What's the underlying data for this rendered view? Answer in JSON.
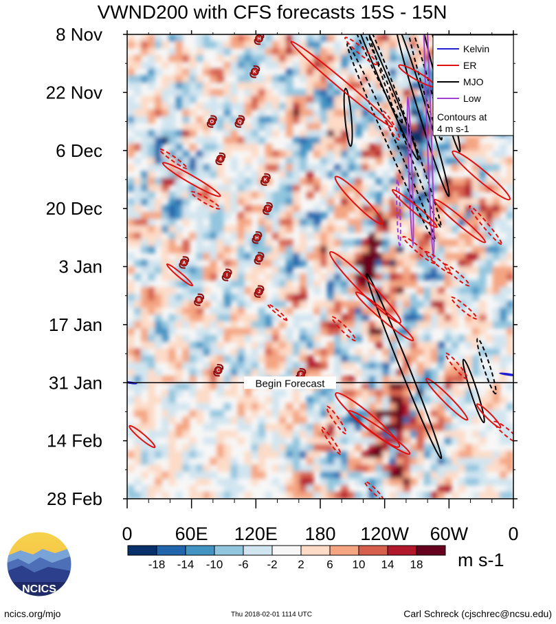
{
  "chart_data": {
    "type": "heatmap",
    "title": "VWND200 with CFS forecasts  15S - 15N",
    "x_ticks": [
      "0",
      "60E",
      "120E",
      "180",
      "120W",
      "60W",
      "0"
    ],
    "x_tick_lons": [
      0,
      60,
      120,
      180,
      240,
      300,
      360
    ],
    "y_ticks": [
      "8 Nov",
      "22 Nov",
      "6 Dec",
      "20 Dec",
      "3 Jan",
      "17 Jan",
      "31 Jan",
      "14 Feb",
      "28 Feb"
    ],
    "y_tick_days": [
      0,
      14,
      28,
      42,
      56,
      70,
      84,
      98,
      112
    ],
    "forecast_start_day": 84,
    "begin_forecast_label": "Begin Forecast",
    "legend": {
      "entries": [
        {
          "label": "Kelvin",
          "color": "#2020d0"
        },
        {
          "label": "ER",
          "color": "#e01010"
        },
        {
          "label": "MJO",
          "color": "#000000"
        },
        {
          "label": "Low",
          "color": "#a040d0"
        }
      ],
      "note_lines": [
        "Contours at",
        "4 m s-1"
      ],
      "location": "top-right"
    },
    "colorbar": {
      "labels": [
        "-18",
        "-14",
        "-10",
        "-6",
        "-2",
        "2",
        "6",
        "10",
        "14",
        "18"
      ],
      "colors": [
        "#08306b",
        "#2166ac",
        "#4393c3",
        "#92c5de",
        "#d1e5f0",
        "#f7f7f7",
        "#fddbc7",
        "#f4a582",
        "#d6604d",
        "#b2182b",
        "#67001f"
      ],
      "units": "m s-1"
    },
    "storms": [
      {
        "letter": "H",
        "lon": 123,
        "day": 1
      },
      {
        "letter": "K",
        "lon": 119,
        "day": 9
      },
      {
        "letter": "O",
        "lon": 79,
        "day": 21
      },
      {
        "letter": "Q",
        "lon": 105,
        "day": 21
      },
      {
        "letter": "4",
        "lon": 87,
        "day": 30
      },
      {
        "letter": "K",
        "lon": 129,
        "day": 35
      },
      {
        "letter": "T",
        "lon": 131,
        "day": 42
      },
      {
        "letter": "H",
        "lon": 121,
        "day": 49
      },
      {
        "letter": "A",
        "lon": 53,
        "day": 55
      },
      {
        "letter": "S",
        "lon": 123,
        "day": 54
      },
      {
        "letter": "I",
        "lon": 93,
        "day": 58
      },
      {
        "letter": "J",
        "lon": 123,
        "day": 62
      },
      {
        "letter": "B",
        "lon": 67,
        "day": 64
      },
      {
        "letter": "C",
        "lon": 85,
        "day": 81
      },
      {
        "letter": "F",
        "lon": 162,
        "day": 82
      }
    ],
    "contours": [
      {
        "wave": "MJO",
        "lon": 227,
        "day": 5,
        "len": 18,
        "w": 3.5,
        "ang": -65,
        "dash": true
      },
      {
        "wave": "MJO",
        "lon": 238,
        "day": 10,
        "len": 22,
        "w": 4,
        "ang": -67,
        "dash": false
      },
      {
        "wave": "MJO",
        "lon": 246,
        "day": 26,
        "len": 26,
        "w": 4,
        "ang": -66,
        "dash": true
      },
      {
        "wave": "MJO",
        "lon": 258,
        "day": 22,
        "len": 26,
        "w": 4,
        "ang": -70,
        "dash": true
      },
      {
        "wave": "MJO",
        "lon": 277,
        "day": 11,
        "len": 15,
        "w": 3.5,
        "ang": -74,
        "dash": true
      },
      {
        "wave": "MJO",
        "lon": 290,
        "day": 9,
        "len": 20,
        "w": 4,
        "ang": -75,
        "dash": false
      },
      {
        "wave": "MJO",
        "lon": 275,
        "day": 18,
        "len": 22,
        "w": 4,
        "ang": -73,
        "dash": false
      },
      {
        "wave": "MJO",
        "lon": 206,
        "day": 20,
        "len": 7,
        "w": 3,
        "ang": -85,
        "dash": false
      },
      {
        "wave": "MJO",
        "lon": 258,
        "day": 80,
        "len": 24,
        "w": 4,
        "ang": -68,
        "dash": false
      },
      {
        "wave": "MJO",
        "lon": 323,
        "day": 86,
        "len": 8,
        "w": 3,
        "ang": -72,
        "dash": false
      },
      {
        "wave": "MJO",
        "lon": 335,
        "day": 80,
        "len": 7,
        "w": 3,
        "ang": -72,
        "dash": true
      },
      {
        "wave": "Low",
        "lon": 281,
        "day": 20,
        "len": 34,
        "w": 2,
        "ang": -88,
        "dash": false
      },
      {
        "wave": "Low",
        "lon": 264,
        "day": 33,
        "len": 18,
        "w": 1.5,
        "ang": -88,
        "dash": false
      },
      {
        "wave": "Low",
        "lon": 253,
        "day": 43,
        "len": 8,
        "w": 1.5,
        "ang": -88,
        "dash": true
      },
      {
        "wave": "ER",
        "lon": 200,
        "day": 12,
        "len": 16,
        "w": 4,
        "ang": -40,
        "dash": false
      },
      {
        "wave": "ER",
        "lon": 218,
        "day": 4,
        "len": 5,
        "w": 3,
        "ang": -40,
        "dash": true
      },
      {
        "wave": "ER",
        "lon": 270,
        "day": 10,
        "len": 5,
        "w": 3.5,
        "ang": -30,
        "dash": false
      },
      {
        "wave": "ER",
        "lon": 246,
        "day": 22,
        "len": 4,
        "w": 2.5,
        "ang": -60,
        "dash": true
      },
      {
        "wave": "ER",
        "lon": 43,
        "day": 30,
        "len": 4,
        "w": 2,
        "ang": -35,
        "dash": true
      },
      {
        "wave": "ER",
        "lon": 60,
        "day": 35,
        "len": 8,
        "w": 3.5,
        "ang": -30,
        "dash": false
      },
      {
        "wave": "ER",
        "lon": 73,
        "day": 40,
        "len": 4,
        "w": 2.5,
        "ang": -30,
        "dash": true
      },
      {
        "wave": "ER",
        "lon": 216,
        "day": 40,
        "len": 8,
        "w": 5,
        "ang": -45,
        "dash": false
      },
      {
        "wave": "ER",
        "lon": 268,
        "day": 42,
        "len": 7,
        "w": 3,
        "ang": -40,
        "dash": false
      },
      {
        "wave": "ER",
        "lon": 272,
        "day": 52,
        "len": 5,
        "w": 2.5,
        "ang": -40,
        "dash": true
      },
      {
        "wave": "ER",
        "lon": 290,
        "day": 55,
        "len": 4,
        "w": 2.5,
        "ang": -40,
        "dash": true
      },
      {
        "wave": "ER",
        "lon": 330,
        "day": 34,
        "len": 9,
        "w": 5,
        "ang": -40,
        "dash": false
      },
      {
        "wave": "ER",
        "lon": 310,
        "day": 45,
        "len": 8,
        "w": 3.5,
        "ang": -40,
        "dash": false
      },
      {
        "wave": "ER",
        "lon": 334,
        "day": 46,
        "len": 6,
        "w": 2.5,
        "ang": -50,
        "dash": true
      },
      {
        "wave": "ER",
        "lon": 49,
        "day": 58,
        "len": 4,
        "w": 2,
        "ang": -40,
        "dash": false
      },
      {
        "wave": "ER",
        "lon": 222,
        "day": 61,
        "len": 12,
        "w": 6,
        "ang": -45,
        "dash": false
      },
      {
        "wave": "ER",
        "lon": 240,
        "day": 68,
        "len": 9,
        "w": 4,
        "ang": -40,
        "dash": false
      },
      {
        "wave": "ER",
        "lon": 202,
        "day": 71,
        "len": 4,
        "w": 2.5,
        "ang": -45,
        "dash": true
      },
      {
        "wave": "ER",
        "lon": 307,
        "day": 58,
        "len": 4,
        "w": 2.5,
        "ang": -40,
        "dash": true
      },
      {
        "wave": "ER",
        "lon": 314,
        "day": 66,
        "len": 4,
        "w": 2.5,
        "ang": -40,
        "dash": true
      },
      {
        "wave": "ER",
        "lon": 307,
        "day": 80,
        "len": 4,
        "w": 2.5,
        "ang": -50,
        "dash": true
      },
      {
        "wave": "ER",
        "lon": 140,
        "day": 67,
        "len": 3,
        "w": 1.5,
        "ang": -40,
        "dash": true
      },
      {
        "wave": "ER",
        "lon": 224,
        "day": 93,
        "len": 10,
        "w": 6,
        "ang": -40,
        "dash": false
      },
      {
        "wave": "ER",
        "lon": 235,
        "day": 96,
        "len": 9,
        "w": 4,
        "ang": -35,
        "dash": false
      },
      {
        "wave": "ER",
        "lon": 195,
        "day": 93,
        "len": 4,
        "w": 2.5,
        "ang": -55,
        "dash": true
      },
      {
        "wave": "ER",
        "lon": 190,
        "day": 98,
        "len": 4,
        "w": 2,
        "ang": -55,
        "dash": true
      },
      {
        "wave": "ER",
        "lon": 298,
        "day": 88,
        "len": 7,
        "w": 3.5,
        "ang": -45,
        "dash": false
      },
      {
        "wave": "ER",
        "lon": 337,
        "day": 92,
        "len": 4,
        "w": 2.5,
        "ang": -45,
        "dash": false
      },
      {
        "wave": "ER",
        "lon": 354,
        "day": 96,
        "len": 4,
        "w": 3,
        "ang": -40,
        "dash": true
      },
      {
        "wave": "ER",
        "lon": 14,
        "day": 97,
        "len": 4,
        "w": 2.5,
        "ang": -40,
        "dash": false
      },
      {
        "wave": "ER",
        "lon": 230,
        "day": 110,
        "len": 3,
        "w": 2,
        "ang": -45,
        "dash": true
      },
      {
        "wave": "Kelvin",
        "lon": 355,
        "day": 82,
        "len": 2,
        "w": 0.5,
        "ang": -8,
        "dash": false
      },
      {
        "wave": "Kelvin",
        "lon": 3,
        "day": 84,
        "len": 1.5,
        "w": 0.5,
        "ang": -8,
        "dash": false
      }
    ]
  },
  "footer": {
    "left": "ncics.org/mjo",
    "center": "Thu 2018-02-01 1114 UTC",
    "right": "Carl Schreck (cjschrec@ncsu.edu)",
    "logo_text": "NCICS"
  }
}
